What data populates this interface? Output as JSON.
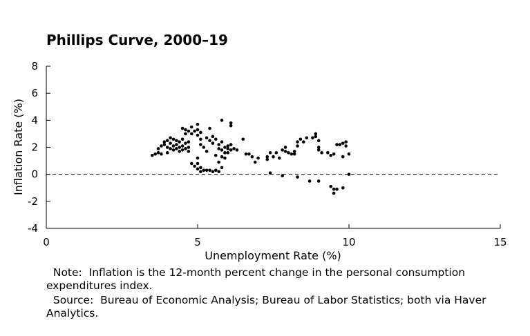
{
  "chart_data": {
    "type": "scatter",
    "title": "Phillips Curve, 2000–19",
    "xlabel": "Unemployment Rate (%)",
    "ylabel": "Inflation Rate (%)",
    "xlim": [
      0,
      15
    ],
    "ylim": [
      -4,
      8
    ],
    "xticks": [
      0,
      5,
      10,
      15
    ],
    "xtick_labels": [
      "0",
      "5",
      "10",
      "15"
    ],
    "yticks": [
      -4,
      -2,
      0,
      2,
      4,
      6,
      8
    ],
    "ytick_labels": [
      "-4",
      "-2",
      "0",
      "2",
      "4",
      "6",
      "8"
    ],
    "reference_line": {
      "y": 0,
      "style": "dashed"
    },
    "grid": false,
    "marker_color": "#000000",
    "points": [
      [
        3.5,
        1.4
      ],
      [
        3.6,
        1.5
      ],
      [
        3.7,
        1.6
      ],
      [
        3.7,
        1.9
      ],
      [
        3.8,
        1.5
      ],
      [
        3.8,
        2.1
      ],
      [
        3.9,
        2.2
      ],
      [
        3.9,
        2.4
      ],
      [
        4.0,
        1.6
      ],
      [
        4.0,
        2.0
      ],
      [
        4.0,
        2.5
      ],
      [
        4.1,
        1.9
      ],
      [
        4.1,
        2.3
      ],
      [
        4.1,
        2.7
      ],
      [
        4.2,
        1.8
      ],
      [
        4.2,
        2.1
      ],
      [
        4.2,
        2.6
      ],
      [
        4.3,
        1.9
      ],
      [
        4.3,
        2.5
      ],
      [
        4.3,
        2.2
      ],
      [
        4.4,
        1.7
      ],
      [
        4.4,
        2.0
      ],
      [
        4.4,
        2.4
      ],
      [
        4.5,
        1.8
      ],
      [
        4.5,
        2.1
      ],
      [
        4.5,
        2.6
      ],
      [
        4.6,
        1.9
      ],
      [
        4.6,
        2.3
      ],
      [
        4.7,
        2.0
      ],
      [
        4.7,
        2.4
      ],
      [
        4.7,
        1.7
      ],
      [
        4.5,
        3.4
      ],
      [
        4.6,
        3.3
      ],
      [
        4.6,
        3.0
      ],
      [
        4.7,
        3.2
      ],
      [
        4.8,
        3.5
      ],
      [
        4.8,
        3.0
      ],
      [
        4.9,
        3.2
      ],
      [
        5.0,
        3.7
      ],
      [
        5.0,
        3.3
      ],
      [
        5.0,
        2.9
      ],
      [
        5.1,
        3.1
      ],
      [
        5.1,
        2.6
      ],
      [
        5.1,
        2.2
      ],
      [
        5.0,
        1.2
      ],
      [
        5.0,
        0.8
      ],
      [
        5.1,
        0.5
      ],
      [
        5.2,
        0.3
      ],
      [
        5.2,
        2.0
      ],
      [
        5.3,
        2.7
      ],
      [
        5.3,
        1.7
      ],
      [
        5.4,
        2.5
      ],
      [
        5.4,
        3.4
      ],
      [
        5.5,
        2.8
      ],
      [
        5.5,
        2.3
      ],
      [
        5.6,
        2.6
      ],
      [
        5.6,
        1.4
      ],
      [
        5.7,
        1.9
      ],
      [
        5.7,
        2.2
      ],
      [
        5.8,
        1.8
      ],
      [
        5.8,
        2.4
      ],
      [
        5.9,
        2.0
      ],
      [
        5.9,
        1.6
      ],
      [
        6.0,
        2.1
      ],
      [
        6.0,
        1.9
      ],
      [
        6.1,
        2.2
      ],
      [
        6.1,
        1.8
      ],
      [
        6.2,
        1.9
      ],
      [
        6.3,
        1.8
      ],
      [
        5.8,
        4.0
      ],
      [
        6.1,
        3.8
      ],
      [
        6.1,
        3.6
      ],
      [
        4.8,
        0.8
      ],
      [
        4.9,
        0.6
      ],
      [
        5.0,
        0.4
      ],
      [
        5.1,
        0.2
      ],
      [
        5.3,
        0.3
      ],
      [
        5.4,
        0.3
      ],
      [
        5.5,
        0.2
      ],
      [
        5.6,
        0.3
      ],
      [
        5.7,
        0.2
      ],
      [
        5.8,
        0.5
      ],
      [
        5.7,
        0.9
      ],
      [
        5.8,
        1.3
      ],
      [
        5.9,
        1.2
      ],
      [
        6.0,
        1.6
      ],
      [
        6.5,
        2.6
      ],
      [
        6.6,
        1.5
      ],
      [
        6.7,
        1.5
      ],
      [
        6.8,
        1.3
      ],
      [
        6.9,
        0.9
      ],
      [
        7.0,
        1.2
      ],
      [
        7.3,
        1.1
      ],
      [
        7.3,
        1.3
      ],
      [
        7.4,
        1.6
      ],
      [
        7.5,
        1.3
      ],
      [
        7.4,
        0.1
      ],
      [
        7.6,
        1.6
      ],
      [
        7.7,
        1.2
      ],
      [
        7.8,
        1.8
      ],
      [
        7.9,
        1.7
      ],
      [
        7.9,
        2.0
      ],
      [
        8.0,
        1.6
      ],
      [
        8.1,
        1.5
      ],
      [
        8.2,
        1.7
      ],
      [
        8.2,
        1.5
      ],
      [
        8.3,
        2.1
      ],
      [
        8.3,
        2.4
      ],
      [
        8.4,
        2.6
      ],
      [
        8.5,
        2.4
      ],
      [
        8.6,
        2.7
      ],
      [
        8.8,
        2.7
      ],
      [
        8.9,
        3.0
      ],
      [
        8.9,
        2.8
      ],
      [
        9.0,
        2.5
      ],
      [
        9.0,
        2.0
      ],
      [
        9.1,
        1.6
      ],
      [
        9.0,
        1.8
      ],
      [
        9.3,
        1.6
      ],
      [
        9.4,
        1.4
      ],
      [
        9.5,
        1.5
      ],
      [
        9.6,
        2.2
      ],
      [
        9.7,
        2.2
      ],
      [
        9.8,
        1.3
      ],
      [
        9.8,
        2.3
      ],
      [
        9.9,
        2.4
      ],
      [
        9.9,
        2.1
      ],
      [
        10.0,
        1.5
      ],
      [
        7.8,
        -0.1
      ],
      [
        8.3,
        -0.2
      ],
      [
        8.7,
        -0.5
      ],
      [
        9.0,
        -0.5
      ],
      [
        9.4,
        -0.9
      ],
      [
        9.5,
        -1.1
      ],
      [
        9.5,
        -1.4
      ],
      [
        9.6,
        -1.1
      ],
      [
        9.8,
        -1.0
      ],
      [
        10.0,
        0.0
      ]
    ]
  },
  "notes": {
    "note": "  Note:  Inflation is the 12-month percent change in the personal consumption expenditures index.",
    "source": "  Source:  Bureau of Economic Analysis; Bureau of Labor Statistics; both via Haver Analytics."
  }
}
